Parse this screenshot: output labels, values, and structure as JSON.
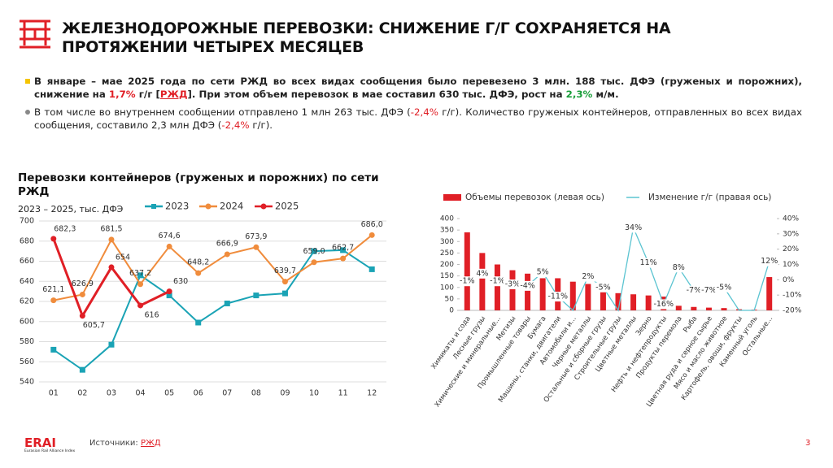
{
  "header": {
    "title_lines": [
      "ЖЕЛЕЗНОДОРОЖНЫЕ ПЕРЕВОЗКИ: СНИЖЕНИЕ Г/Г СОХРАНЯЕТСЯ НА",
      "ПРОТЯЖЕНИИ ЧЕТЫРЕХ МЕСЯЦЕВ"
    ]
  },
  "bullets": [
    {
      "bold": true,
      "marker_color": "#f5c400",
      "parts": [
        {
          "text": "В январе – мае 2025 года по сети РЖД во всех видах сообщения было перевезено 3 млн. 188 тыс. ДФЭ (груженых и порожних), снижение на "
        },
        {
          "text": "1,7%",
          "color": "#e01f26"
        },
        {
          "text": " г/г ["
        },
        {
          "text": "РЖД",
          "color": "#e01f26",
          "underline": true
        },
        {
          "text": "]. При этом объем перевозок в мае составил 630 тыс. ДФЭ, рост на "
        },
        {
          "text": "2,3%",
          "color": "#1a9e3a"
        },
        {
          "text": " м/м."
        }
      ]
    },
    {
      "bold": false,
      "marker_color": "#888888",
      "parts": [
        {
          "text": "В том числе во внутреннем сообщении отправлено 1 млн 263 тыс. ДФЭ ("
        },
        {
          "text": "-2,4%",
          "color": "#e01f26"
        },
        {
          "text": " г/г). Количество груженых контейнеров, отправленных во всех видах сообщения, составило 2,3 млн ДФЭ ("
        },
        {
          "text": "-2,4%",
          "color": "#e01f26"
        },
        {
          "text": " г/г)."
        }
      ]
    }
  ],
  "chart_data": [
    {
      "type": "line",
      "title": "Перевозки контейнеров (груженых и порожних) по сети РЖД",
      "subtitle": "2023 – 2025, тыс. ДФЭ",
      "categories": [
        "01",
        "02",
        "03",
        "04",
        "05",
        "06",
        "07",
        "08",
        "09",
        "10",
        "11",
        "12"
      ],
      "ylim": [
        540,
        700
      ],
      "yticks": [
        540,
        560,
        580,
        600,
        620,
        640,
        660,
        680,
        700
      ],
      "grid": true,
      "series": [
        {
          "name": "2023",
          "color": "#1aa3b5",
          "marker": "square",
          "values": [
            572,
            552,
            577,
            646,
            626,
            599,
            618,
            626,
            628,
            670,
            671,
            652
          ]
        },
        {
          "name": "2024",
          "color": "#f08c3c",
          "marker": "circle",
          "values": [
            621.1,
            626.9,
            681.5,
            637.2,
            674.6,
            648.2,
            666.9,
            673.9,
            639.7,
            659.0,
            662.7,
            686.0
          ],
          "value_labels": [
            "621,1",
            "626,9",
            "681,5",
            "637,2",
            "674,6",
            "648,2",
            "666,9",
            "673,9",
            "639,7",
            "659,0",
            "662,7",
            "686,0"
          ]
        },
        {
          "name": "2025",
          "color": "#e01f26",
          "marker": "circle",
          "values": [
            682.3,
            605.7,
            654,
            616,
            630,
            null,
            null,
            null,
            null,
            null,
            null,
            null
          ],
          "value_labels": [
            "682,3",
            "605,7",
            "654",
            "616",
            "630",
            null,
            null,
            null,
            null,
            null,
            null,
            null
          ]
        }
      ]
    },
    {
      "type": "bar",
      "categories": [
        "Химикаты и сода",
        "Лесные грузы",
        "Химические и минеральные...",
        "Метизы",
        "Промышленные товары",
        "Бумага",
        "Машины, станки, двигатели",
        "Автомобили и...",
        "Черные металлы",
        "Остальные и сборные грузы",
        "Строительные грузы",
        "Цветные металлы",
        "Зерно",
        "Нефть и нефтепродукты",
        "Продукты перемола",
        "Рыба",
        "Цветная руда и серное сырье",
        "Мясо и масло животное",
        "Картофель, овощи, фрукты",
        "Каменный уголь",
        "Остальные..."
      ],
      "ylim": [
        0,
        400
      ],
      "yticks": [
        0,
        50,
        100,
        150,
        200,
        250,
        300,
        350,
        400
      ],
      "y2lim": [
        -20,
        40
      ],
      "y2ticks": [
        {
          "value": -20,
          "label": "-20%"
        },
        {
          "value": -10,
          "label": "-10%"
        },
        {
          "value": 0,
          "label": "0%"
        },
        {
          "value": 10,
          "label": "10%"
        },
        {
          "value": 20,
          "label": "20%"
        },
        {
          "value": 30,
          "label": "30%"
        },
        {
          "value": 40,
          "label": "40%"
        }
      ],
      "series": [
        {
          "name": "Объемы перевозок (левая ось)",
          "color": "#e01f26",
          "values": [
            340,
            250,
            200,
            175,
            160,
            140,
            140,
            125,
            115,
            95,
            75,
            70,
            65,
            60,
            20,
            15,
            12,
            10,
            5,
            3,
            145
          ]
        },
        {
          "name": "Изменение г/г (правая ось)",
          "color": "#5bc4d1",
          "axis": "y2",
          "values": [
            -1,
            4,
            -1,
            -3,
            -4,
            5,
            -11,
            -20,
            2,
            -5,
            -20,
            34,
            11,
            -16,
            8,
            -7,
            -7,
            -5,
            -20,
            -20,
            12
          ],
          "value_labels": [
            "-1%",
            "4%",
            "-1%",
            "-3%",
            "-4%",
            "5%",
            "-11%",
            null,
            "2%",
            "-5%",
            null,
            "34%",
            "11%",
            "-16%",
            "8%",
            "-7%",
            "-7%",
            "-5%",
            null,
            null,
            "12%"
          ]
        }
      ]
    }
  ],
  "footer": {
    "logo": "ERAI",
    "logo_sub": "Eurasian Rail Alliance Index",
    "source_label": "Источники:",
    "source_link": "РЖД",
    "page": "3"
  }
}
